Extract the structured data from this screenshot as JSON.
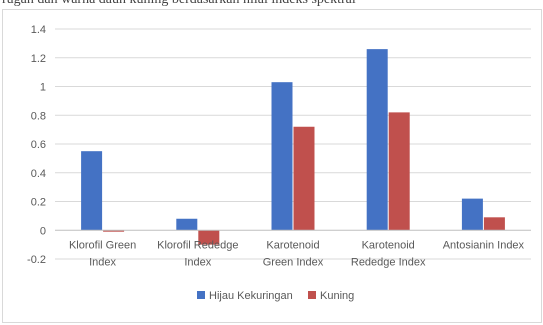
{
  "caption": "rugan dan warna daun kuning berdasarkan nilai indeks spektral",
  "colors": {
    "series1": "#4472C4",
    "series2": "#C0504D",
    "grid": "#d9d9d9",
    "axis": "#bfbfbf",
    "text": "#595959"
  },
  "chart_data": {
    "type": "bar",
    "title": "",
    "xlabel": "",
    "ylabel": "",
    "ylim": [
      -0.2,
      1.4
    ],
    "yticks": [
      "1.4",
      "1.2",
      "1",
      "0.8",
      "0.6",
      "0.4",
      "0.2",
      "0",
      "-0.2"
    ],
    "categories": [
      [
        "Klorofil Green",
        "Index"
      ],
      [
        "Klorofil Rededge",
        "Index"
      ],
      [
        "Karotenoid",
        "Green Index"
      ],
      [
        "Karotenoid",
        "Rededge Index"
      ],
      [
        "Antosianin Index"
      ]
    ],
    "series": [
      {
        "name": "Hijau Kekuringan",
        "color": "#4472C4",
        "values": [
          0.55,
          0.08,
          1.03,
          1.26,
          0.22
        ]
      },
      {
        "name": "Kuning",
        "color": "#C0504D",
        "values": [
          -0.01,
          -0.1,
          0.72,
          0.82,
          0.09
        ]
      }
    ],
    "grid": true,
    "legend": "bottom"
  }
}
